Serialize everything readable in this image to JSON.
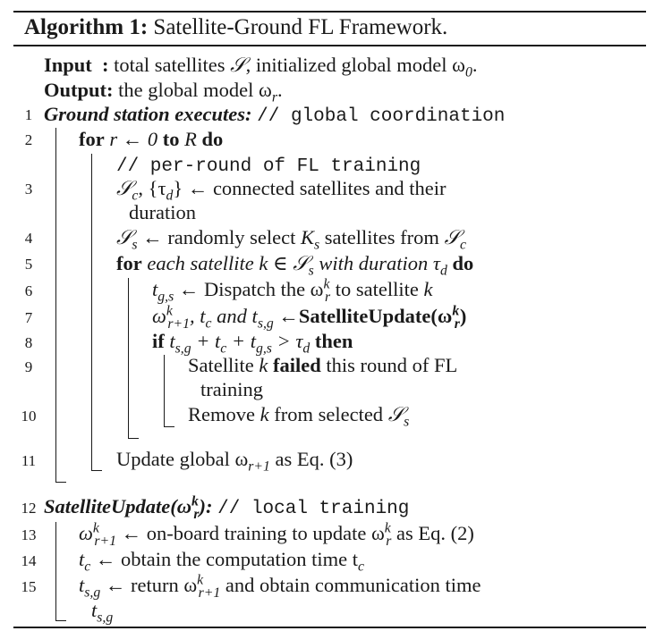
{
  "title": {
    "label": "Algorithm 1:",
    "text": "Satellite-Ground FL Framework."
  },
  "input": {
    "label": "Input",
    "sep": ":",
    "text": "total satellites",
    "sym": "𝒮",
    "text2": ", initialized global model ω",
    "sub": "0",
    "end": "."
  },
  "output": {
    "label": "Output:",
    "text": "the global model ω",
    "sub": "r",
    "end": "."
  },
  "lines": [
    {
      "num": "1",
      "head": "Ground station executes:",
      "comment": "// global coordination"
    },
    {
      "num": "2",
      "kw1": "for",
      "mid": " r ← 0 ",
      "kw2": "to",
      "mid2": " R ",
      "kw3": "do"
    },
    {
      "comment": "// per-round of FL training"
    },
    {
      "num": "3",
      "a": "𝒮",
      "asub": "c",
      "b": ", {τ",
      "bsub": "d",
      "c": "} ← connected satellites and their",
      "cont": "duration"
    },
    {
      "num": "4",
      "a": "𝒮",
      "asub": "s",
      "b": " ← randomly select ",
      "k": "K",
      "ksub": "s",
      "c": " satellites from ",
      "d": "𝒮",
      "dsub": "c"
    },
    {
      "num": "5",
      "kw1": "for",
      "it": "each satellite k ∈ 𝒮",
      "itsub": "s",
      "it2": " with duration τ",
      "it2sub": "d",
      "kw2": "do"
    },
    {
      "num": "6",
      "a": "t",
      "asub": "g,s",
      "b": " ← Dispatch the ω",
      "bsup": "k",
      "bsub": "r",
      "c": " to satellite ",
      "d": "k"
    },
    {
      "num": "7",
      "a": "ω",
      "asup": "k",
      "asub": "r+1",
      "b": ", t",
      "bsub": "c",
      "c": " and t",
      "csub": "s,g",
      "d": " ←",
      "fn": "SatelliteUpdate(ω",
      "fnsup": "k",
      "fnsub": "r",
      "fnend": ")"
    },
    {
      "num": "8",
      "kw1": "if",
      "a": " t",
      "asub": "s,g",
      "b": " + t",
      "bsub": "c",
      "c": " + t",
      "csub": "g,s",
      "d": " > τ",
      "dsub": "d",
      "kw2": "then"
    },
    {
      "num": "9",
      "a": "Satellite ",
      "k": "k",
      "b": " ",
      "bold": "failed",
      "c": " this round of FL",
      "cont": "training"
    },
    {
      "num": "10",
      "a": "Remove ",
      "k": "k",
      "b": " from selected ",
      "s": "𝒮",
      "ssub": "s"
    },
    {
      "num": "11",
      "a": "Update global ω",
      "asub": "r+1",
      "b": " as Eq. (3)"
    },
    {
      "num": "12",
      "head": "SatelliteUpdate(ω",
      "headsup": "k",
      "headsub": "r",
      "headend": "):",
      "comment": "// local training"
    },
    {
      "num": "13",
      "a": "ω",
      "asup": "k",
      "asub": "r+1",
      "b": " ← on-board training to update ω",
      "bsup": "k",
      "bsub": "r",
      "c": " as Eq. (2)"
    },
    {
      "num": "14",
      "a": "t",
      "asub": "c",
      "b": " ← obtain the computation time t",
      "bsub": "c"
    },
    {
      "num": "15",
      "a": "t",
      "asub": "s,g",
      "b": " ← return ω",
      "bsup": "k",
      "bsub": "r+1",
      "c": " and obtain communication time",
      "cont": "t",
      "contsub": "s,g"
    }
  ]
}
